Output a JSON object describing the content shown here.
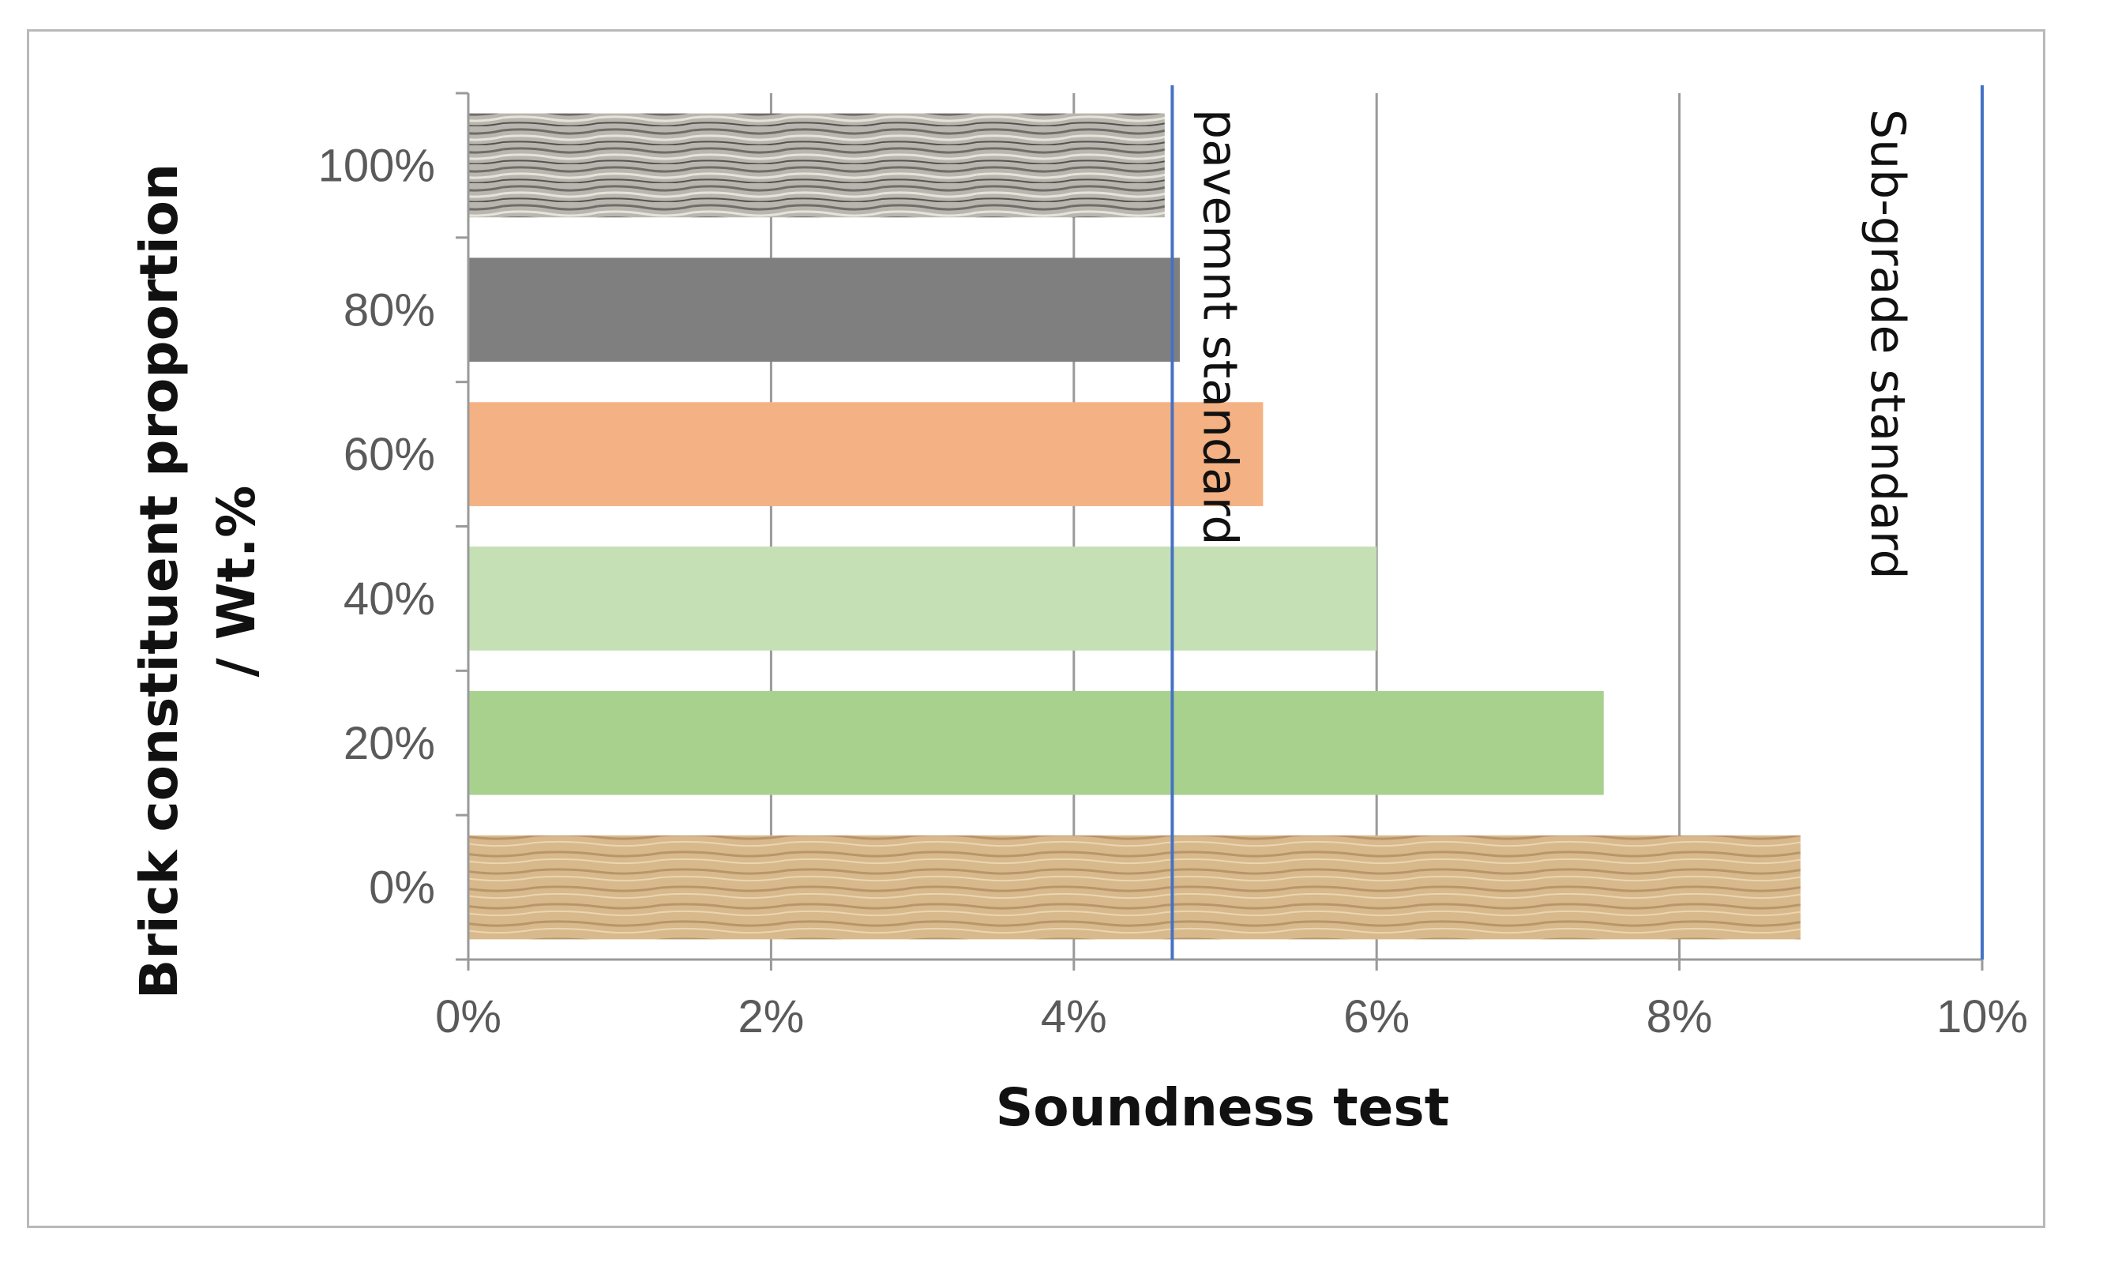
{
  "chart_data": {
    "type": "bar",
    "orientation": "horizontal",
    "title": "",
    "xlabel": "Soundness test",
    "ylabel_line1": "Brick constituent proportion",
    "ylabel_line2": "/ Wt.%",
    "categories": [
      "0%",
      "20%",
      "40%",
      "60%",
      "80%",
      "100%"
    ],
    "values": [
      8.8,
      7.5,
      6.0,
      5.25,
      4.7,
      4.6
    ],
    "bar_colors": [
      "#d8b98c",
      "#a9d18e",
      "#c5e0b4",
      "#f4b183",
      "#7f7f7f",
      "#b8b6ae"
    ],
    "bar_textures": [
      "wood",
      "none",
      "none",
      "none",
      "none",
      "stone"
    ],
    "xlim": [
      0,
      10
    ],
    "x_ticks": [
      "0%",
      "2%",
      "4%",
      "6%",
      "8%",
      "10%"
    ],
    "x_tick_values": [
      0,
      2,
      4,
      6,
      8,
      10
    ],
    "grid": "vertical",
    "reference_lines": [
      {
        "value": 4.65,
        "label": "pavemnt standard",
        "color": "#4472c4"
      },
      {
        "value": 10.0,
        "label": "Sub-grade standard",
        "color": "#4472c4"
      }
    ]
  }
}
